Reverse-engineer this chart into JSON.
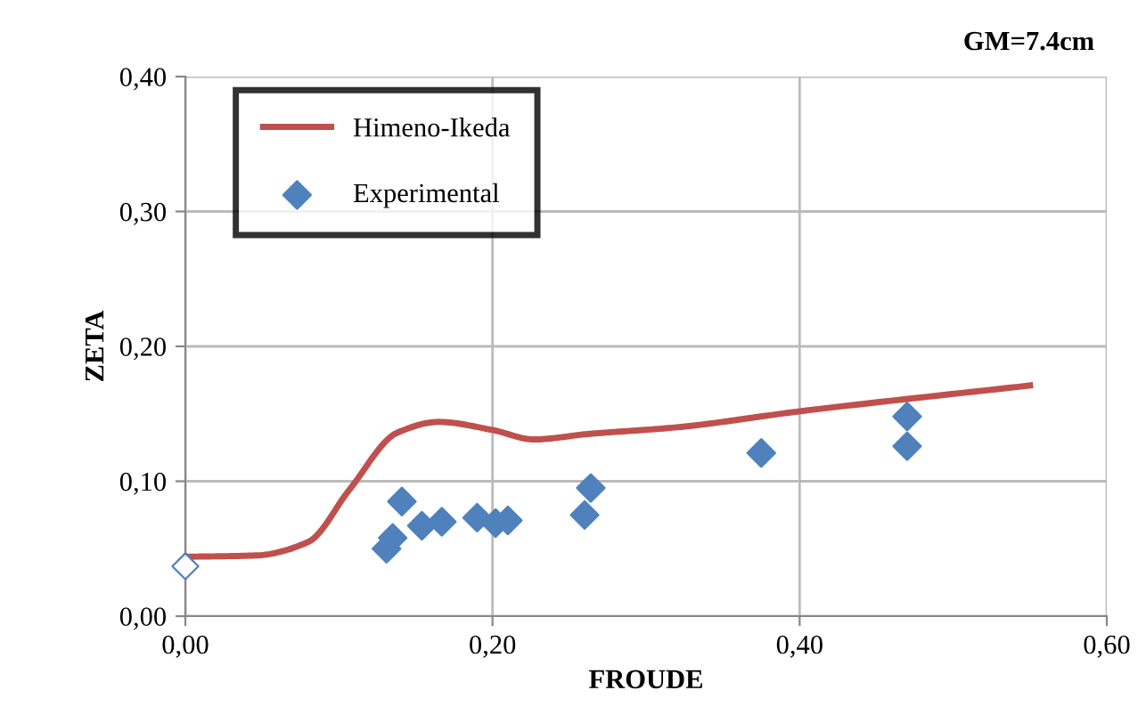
{
  "chart_data": {
    "type": "scatter",
    "xlabel": "FROUDE",
    "ylabel": "ZETA",
    "annotations": [
      "GM=7.4cm"
    ],
    "xlim": [
      0,
      0.6
    ],
    "ylim": [
      0,
      0.4
    ],
    "xticks": [
      {
        "value": 0,
        "label": "0,00"
      },
      {
        "value": 0.2,
        "label": "0,20"
      },
      {
        "value": 0.4,
        "label": "0,40"
      },
      {
        "value": 0.6,
        "label": "0,60"
      }
    ],
    "yticks": [
      {
        "value": 0,
        "label": "0,00"
      },
      {
        "value": 0.1,
        "label": "0,10"
      },
      {
        "value": 0.2,
        "label": "0,20"
      },
      {
        "value": 0.3,
        "label": "0,30"
      },
      {
        "value": 0.4,
        "label": "0,40"
      }
    ],
    "grid": true,
    "legend": "top left",
    "series": [
      {
        "name": "Himeno-Ikeda",
        "type": "line",
        "color": "#c0504d",
        "x": [
          0,
          0.046,
          0.08,
          0.107,
          0.138,
          0.165,
          0.2,
          0.227,
          0.262,
          0.32,
          0.401,
          0.55
        ],
        "values": [
          0.044,
          0.045,
          0.055,
          0.094,
          0.136,
          0.144,
          0.138,
          0.131,
          0.135,
          0.14,
          0.152,
          0.171
        ]
      },
      {
        "name": "Experimental",
        "marker": "diamond",
        "color": "#4f81bd",
        "x": [
          0.131,
          0.135,
          0.141,
          0.154,
          0.167,
          0.19,
          0.202,
          0.21,
          0.26,
          0.264,
          0.375,
          0.47,
          0.47
        ],
        "values": [
          0.05,
          0.058,
          0.085,
          0.067,
          0.07,
          0.073,
          0.069,
          0.071,
          0.075,
          0.095,
          0.121,
          0.148,
          0.126
        ]
      },
      {
        "marker": "diamond",
        "color": "#4f81bd",
        "x": [
          0
        ],
        "values": [
          0.037
        ]
      }
    ]
  }
}
